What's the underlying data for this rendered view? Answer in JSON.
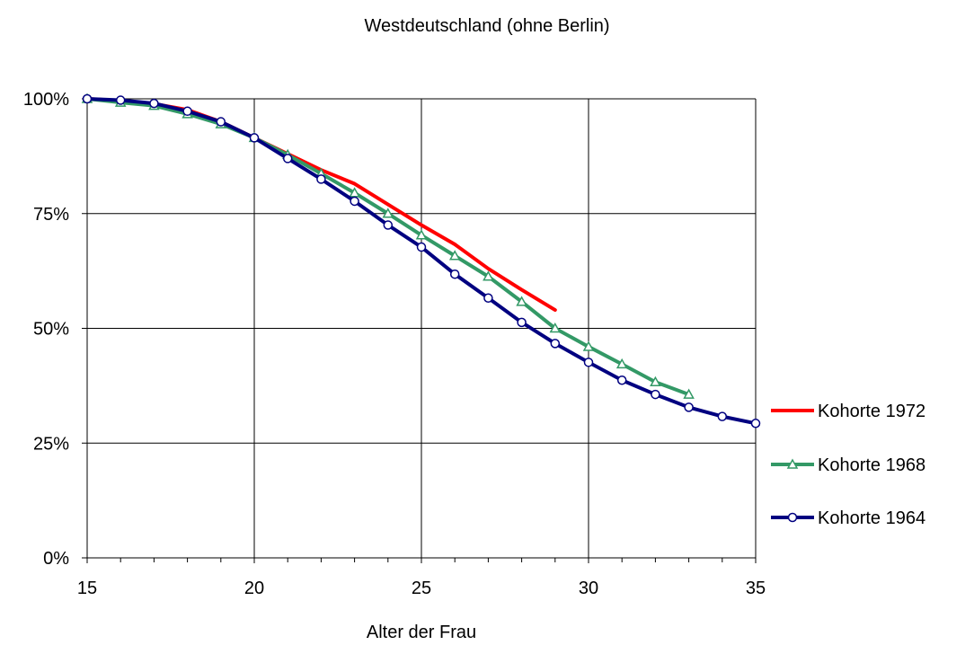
{
  "chart_data": {
    "type": "line",
    "title": "Westdeutschland (ohne Berlin)",
    "xlabel": "Alter der Frau",
    "ylabel": "",
    "xlim": [
      15,
      35
    ],
    "ylim": [
      0,
      100
    ],
    "x_ticks": [
      "15",
      "20",
      "25",
      "30",
      "35"
    ],
    "y_ticks": [
      "0%",
      "25%",
      "50%",
      "75%",
      "100%"
    ],
    "grid": true,
    "legend_position": "right",
    "series": [
      {
        "name": "Kohorte 1972",
        "color": "#ff0000",
        "marker": "none",
        "x": [
          15,
          16,
          17,
          18,
          19,
          20,
          21,
          22,
          23,
          24,
          25,
          26,
          27,
          28,
          29
        ],
        "y": [
          100,
          99.6,
          98.9,
          97.6,
          95.0,
          91.5,
          88.0,
          84.5,
          81.5,
          77.0,
          72.5,
          68.3,
          63.0,
          58.4,
          54.0
        ]
      },
      {
        "name": "Kohorte 1968",
        "color": "#339966",
        "marker": "triangle",
        "x": [
          15,
          16,
          17,
          18,
          19,
          20,
          21,
          22,
          23,
          24,
          25,
          26,
          27,
          28,
          29,
          30,
          31,
          32,
          33
        ],
        "y": [
          100,
          99.2,
          98.5,
          96.7,
          94.5,
          91.5,
          87.8,
          83.7,
          79.5,
          75.0,
          70.3,
          65.8,
          61.3,
          55.8,
          50.0,
          46.0,
          42.2,
          38.3,
          35.6
        ]
      },
      {
        "name": "Kohorte 1964",
        "color": "#000080",
        "marker": "circle",
        "x": [
          15,
          16,
          17,
          18,
          19,
          20,
          21,
          22,
          23,
          24,
          25,
          26,
          27,
          28,
          29,
          30,
          31,
          32,
          33,
          34,
          35
        ],
        "y": [
          100,
          99.7,
          99.0,
          97.3,
          95.0,
          91.5,
          87.0,
          82.5,
          77.7,
          72.5,
          67.7,
          61.8,
          56.6,
          51.3,
          46.7,
          42.6,
          38.7,
          35.6,
          32.8,
          30.8,
          29.3
        ]
      }
    ]
  }
}
